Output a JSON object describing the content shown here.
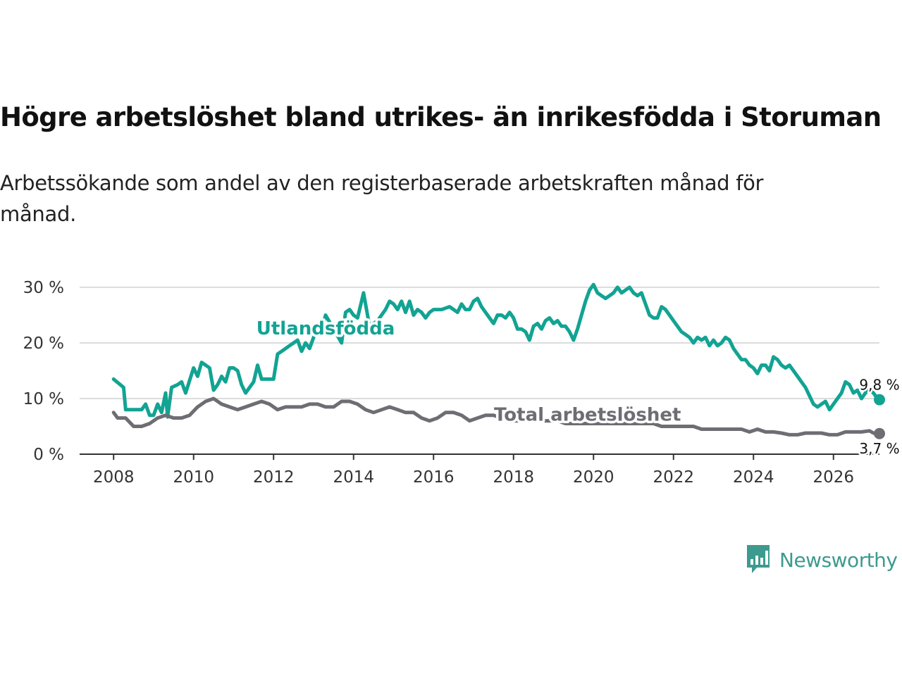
{
  "title": "Högre arbetslöshet bland utrikes- än inrikesfödda i Storuman",
  "subtitle": "Arbetssökande som andel av den registerbaserade arbetskraften månad för månad.",
  "brand": {
    "name": "Newsworthy",
    "icon": "bar-chart-logo-icon",
    "color": "#3d9a8f"
  },
  "chart_data": {
    "type": "line",
    "x_ticks": [
      "2008",
      "2010",
      "2012",
      "2014",
      "2016",
      "2018",
      "2020",
      "2022",
      "2024",
      "2026"
    ],
    "x_tick_values": [
      2008,
      2010,
      2012,
      2014,
      2016,
      2018,
      2020,
      2022,
      2024,
      2026
    ],
    "y_ticks": [
      "0 %",
      "10 %",
      "20 %",
      "30 %"
    ],
    "y_tick_values": [
      0,
      10,
      20,
      30
    ],
    "xlim": [
      2007.15,
      2027.15
    ],
    "ylim": [
      0,
      30
    ],
    "grid": true,
    "series": [
      {
        "name": "Utlandsfödda",
        "color": "#12a393",
        "end_label": "9,8 %",
        "points": [
          [
            2008.0,
            13.5
          ],
          [
            2008.25,
            12
          ],
          [
            2008.3,
            8
          ],
          [
            2008.5,
            8
          ],
          [
            2008.7,
            8
          ],
          [
            2008.8,
            9
          ],
          [
            2008.9,
            7
          ],
          [
            2009.0,
            7
          ],
          [
            2009.1,
            9
          ],
          [
            2009.2,
            7.5
          ],
          [
            2009.3,
            11
          ],
          [
            2009.35,
            6.7
          ],
          [
            2009.45,
            12
          ],
          [
            2009.6,
            12.5
          ],
          [
            2009.7,
            13
          ],
          [
            2009.8,
            11
          ],
          [
            2010.0,
            15.5
          ],
          [
            2010.1,
            14
          ],
          [
            2010.2,
            16.5
          ],
          [
            2010.3,
            16
          ],
          [
            2010.4,
            15.5
          ],
          [
            2010.5,
            11.5
          ],
          [
            2010.6,
            12.5
          ],
          [
            2010.7,
            14
          ],
          [
            2010.8,
            13
          ],
          [
            2010.9,
            15.5
          ],
          [
            2011.0,
            15.5
          ],
          [
            2011.1,
            15
          ],
          [
            2011.2,
            12.5
          ],
          [
            2011.3,
            11
          ],
          [
            2011.4,
            12
          ],
          [
            2011.5,
            13
          ],
          [
            2011.6,
            16
          ],
          [
            2011.7,
            13.5
          ],
          [
            2012.0,
            13.5
          ],
          [
            2012.1,
            18
          ],
          [
            2012.2,
            18.5
          ],
          [
            2012.3,
            19
          ],
          [
            2012.4,
            19.5
          ],
          [
            2012.5,
            20
          ],
          [
            2012.6,
            20.5
          ],
          [
            2012.7,
            18.5
          ],
          [
            2012.8,
            20
          ],
          [
            2012.9,
            19
          ],
          [
            2013.0,
            21
          ],
          [
            2013.1,
            23
          ],
          [
            2013.2,
            22
          ],
          [
            2013.3,
            25
          ],
          [
            2013.5,
            22.5
          ],
          [
            2013.7,
            20
          ],
          [
            2013.8,
            25.5
          ],
          [
            2013.9,
            26
          ],
          [
            2014.0,
            25
          ],
          [
            2014.1,
            24.5
          ],
          [
            2014.25,
            29
          ],
          [
            2014.4,
            23
          ],
          [
            2014.6,
            24
          ],
          [
            2014.8,
            26
          ],
          [
            2014.9,
            27.5
          ],
          [
            2015.0,
            27
          ],
          [
            2015.1,
            26
          ],
          [
            2015.2,
            27.5
          ],
          [
            2015.3,
            25.5
          ],
          [
            2015.4,
            27.5
          ],
          [
            2015.5,
            25
          ],
          [
            2015.6,
            26
          ],
          [
            2015.7,
            25.5
          ],
          [
            2015.8,
            24.5
          ],
          [
            2015.9,
            25.5
          ],
          [
            2016.0,
            26
          ],
          [
            2016.2,
            26
          ],
          [
            2016.4,
            26.5
          ],
          [
            2016.5,
            26
          ],
          [
            2016.6,
            25.5
          ],
          [
            2016.7,
            27
          ],
          [
            2016.8,
            26
          ],
          [
            2016.9,
            26
          ],
          [
            2017.0,
            27.5
          ],
          [
            2017.1,
            28
          ],
          [
            2017.2,
            26.5
          ],
          [
            2017.3,
            25.5
          ],
          [
            2017.4,
            24.5
          ],
          [
            2017.5,
            23.5
          ],
          [
            2017.6,
            25
          ],
          [
            2017.7,
            25
          ],
          [
            2017.8,
            24.5
          ],
          [
            2017.9,
            25.5
          ],
          [
            2018.0,
            24.5
          ],
          [
            2018.1,
            22.5
          ],
          [
            2018.2,
            22.5
          ],
          [
            2018.3,
            22
          ],
          [
            2018.4,
            20.5
          ],
          [
            2018.5,
            23
          ],
          [
            2018.6,
            23.5
          ],
          [
            2018.7,
            22.5
          ],
          [
            2018.8,
            24
          ],
          [
            2018.9,
            24.5
          ],
          [
            2019.0,
            23.5
          ],
          [
            2019.1,
            24
          ],
          [
            2019.2,
            23
          ],
          [
            2019.3,
            23
          ],
          [
            2019.4,
            22
          ],
          [
            2019.5,
            20.5
          ],
          [
            2019.6,
            22.5
          ],
          [
            2019.7,
            25
          ],
          [
            2019.8,
            27.5
          ],
          [
            2019.9,
            29.5
          ],
          [
            2020.0,
            30.5
          ],
          [
            2020.1,
            29
          ],
          [
            2020.2,
            28.5
          ],
          [
            2020.3,
            28
          ],
          [
            2020.4,
            28.5
          ],
          [
            2020.5,
            29
          ],
          [
            2020.6,
            30
          ],
          [
            2020.7,
            29
          ],
          [
            2020.8,
            29.5
          ],
          [
            2020.9,
            30
          ],
          [
            2021.0,
            29
          ],
          [
            2021.1,
            28.5
          ],
          [
            2021.2,
            29
          ],
          [
            2021.3,
            27
          ],
          [
            2021.4,
            25
          ],
          [
            2021.5,
            24.5
          ],
          [
            2021.6,
            24.5
          ],
          [
            2021.7,
            26.5
          ],
          [
            2021.8,
            26
          ],
          [
            2021.9,
            25
          ],
          [
            2022.0,
            24
          ],
          [
            2022.1,
            23
          ],
          [
            2022.2,
            22
          ],
          [
            2022.3,
            21.5
          ],
          [
            2022.4,
            21
          ],
          [
            2022.5,
            20
          ],
          [
            2022.6,
            21
          ],
          [
            2022.7,
            20.5
          ],
          [
            2022.8,
            21
          ],
          [
            2022.9,
            19.5
          ],
          [
            2023.0,
            20.5
          ],
          [
            2023.1,
            19.5
          ],
          [
            2023.2,
            20
          ],
          [
            2023.3,
            21
          ],
          [
            2023.4,
            20.5
          ],
          [
            2023.5,
            19
          ],
          [
            2023.6,
            18
          ],
          [
            2023.7,
            17
          ],
          [
            2023.8,
            17
          ],
          [
            2023.9,
            16
          ],
          [
            2024.0,
            15.5
          ],
          [
            2024.1,
            14.5
          ],
          [
            2024.2,
            16
          ],
          [
            2024.3,
            16
          ],
          [
            2024.4,
            15
          ],
          [
            2024.5,
            17.5
          ],
          [
            2024.6,
            17
          ],
          [
            2024.7,
            16
          ],
          [
            2024.8,
            15.5
          ],
          [
            2024.9,
            16
          ],
          [
            2025.0,
            15
          ],
          [
            2025.1,
            14
          ],
          [
            2025.2,
            13
          ],
          [
            2025.3,
            12
          ],
          [
            2025.4,
            10.5
          ],
          [
            2025.5,
            9
          ],
          [
            2025.6,
            8.5
          ],
          [
            2025.7,
            9
          ],
          [
            2025.8,
            9.5
          ],
          [
            2025.9,
            8
          ],
          [
            2026.0,
            9
          ],
          [
            2026.1,
            10
          ],
          [
            2026.2,
            11
          ],
          [
            2026.3,
            13
          ],
          [
            2026.4,
            12.5
          ],
          [
            2026.5,
            11
          ],
          [
            2026.6,
            11.5
          ],
          [
            2026.7,
            10
          ],
          [
            2026.8,
            11
          ],
          [
            2026.9,
            11.5
          ],
          [
            2027.0,
            11
          ],
          [
            2027.1,
            10
          ],
          [
            2027.15,
            9.8
          ]
        ]
      },
      {
        "name": "Total arbetslöshet",
        "color": "#6e6d73",
        "end_label": "3,7 %",
        "points": [
          [
            2008.0,
            7.5
          ],
          [
            2008.1,
            6.5
          ],
          [
            2008.3,
            6.5
          ],
          [
            2008.5,
            5
          ],
          [
            2008.7,
            5
          ],
          [
            2008.9,
            5.5
          ],
          [
            2009.1,
            6.5
          ],
          [
            2009.3,
            7
          ],
          [
            2009.5,
            6.5
          ],
          [
            2009.7,
            6.5
          ],
          [
            2009.9,
            7
          ],
          [
            2010.1,
            8.5
          ],
          [
            2010.3,
            9.5
          ],
          [
            2010.5,
            10
          ],
          [
            2010.7,
            9
          ],
          [
            2010.9,
            8.5
          ],
          [
            2011.1,
            8
          ],
          [
            2011.3,
            8.5
          ],
          [
            2011.5,
            9
          ],
          [
            2011.7,
            9.5
          ],
          [
            2011.9,
            9
          ],
          [
            2012.1,
            8
          ],
          [
            2012.3,
            8.5
          ],
          [
            2012.5,
            8.5
          ],
          [
            2012.7,
            8.5
          ],
          [
            2012.9,
            9
          ],
          [
            2013.1,
            9
          ],
          [
            2013.3,
            8.5
          ],
          [
            2013.5,
            8.5
          ],
          [
            2013.7,
            9.5
          ],
          [
            2013.9,
            9.5
          ],
          [
            2014.1,
            9
          ],
          [
            2014.3,
            8
          ],
          [
            2014.5,
            7.5
          ],
          [
            2014.7,
            8
          ],
          [
            2014.9,
            8.5
          ],
          [
            2015.1,
            8
          ],
          [
            2015.3,
            7.5
          ],
          [
            2015.5,
            7.5
          ],
          [
            2015.7,
            6.5
          ],
          [
            2015.9,
            6
          ],
          [
            2016.1,
            6.5
          ],
          [
            2016.3,
            7.5
          ],
          [
            2016.5,
            7.5
          ],
          [
            2016.7,
            7
          ],
          [
            2016.9,
            6
          ],
          [
            2017.1,
            6.5
          ],
          [
            2017.3,
            7
          ],
          [
            2017.5,
            7
          ],
          [
            2017.7,
            6.5
          ],
          [
            2017.9,
            6
          ],
          [
            2018.1,
            6
          ],
          [
            2018.3,
            6.5
          ],
          [
            2018.5,
            6.5
          ],
          [
            2018.7,
            6
          ],
          [
            2018.9,
            6
          ],
          [
            2019.1,
            6
          ],
          [
            2019.3,
            5.5
          ],
          [
            2019.5,
            5.5
          ],
          [
            2019.7,
            5.5
          ],
          [
            2019.9,
            5.5
          ],
          [
            2020.1,
            5.5
          ],
          [
            2020.3,
            5.5
          ],
          [
            2020.5,
            5.5
          ],
          [
            2020.7,
            5.5
          ],
          [
            2020.9,
            5.5
          ],
          [
            2021.1,
            5.5
          ],
          [
            2021.3,
            5.5
          ],
          [
            2021.5,
            5.5
          ],
          [
            2021.7,
            5
          ],
          [
            2021.9,
            5
          ],
          [
            2022.1,
            5
          ],
          [
            2022.3,
            5
          ],
          [
            2022.5,
            5
          ],
          [
            2022.7,
            4.5
          ],
          [
            2022.9,
            4.5
          ],
          [
            2023.1,
            4.5
          ],
          [
            2023.3,
            4.5
          ],
          [
            2023.5,
            4.5
          ],
          [
            2023.7,
            4.5
          ],
          [
            2023.9,
            4
          ],
          [
            2024.1,
            4.5
          ],
          [
            2024.3,
            4
          ],
          [
            2024.5,
            4
          ],
          [
            2024.7,
            3.8
          ],
          [
            2024.9,
            3.5
          ],
          [
            2025.1,
            3.5
          ],
          [
            2025.3,
            3.8
          ],
          [
            2025.5,
            3.8
          ],
          [
            2025.7,
            3.8
          ],
          [
            2025.9,
            3.5
          ],
          [
            2026.1,
            3.5
          ],
          [
            2026.3,
            4
          ],
          [
            2026.5,
            4
          ],
          [
            2026.7,
            4
          ],
          [
            2026.9,
            4.2
          ],
          [
            2027.0,
            3.8
          ],
          [
            2027.15,
            3.7
          ]
        ]
      }
    ]
  }
}
